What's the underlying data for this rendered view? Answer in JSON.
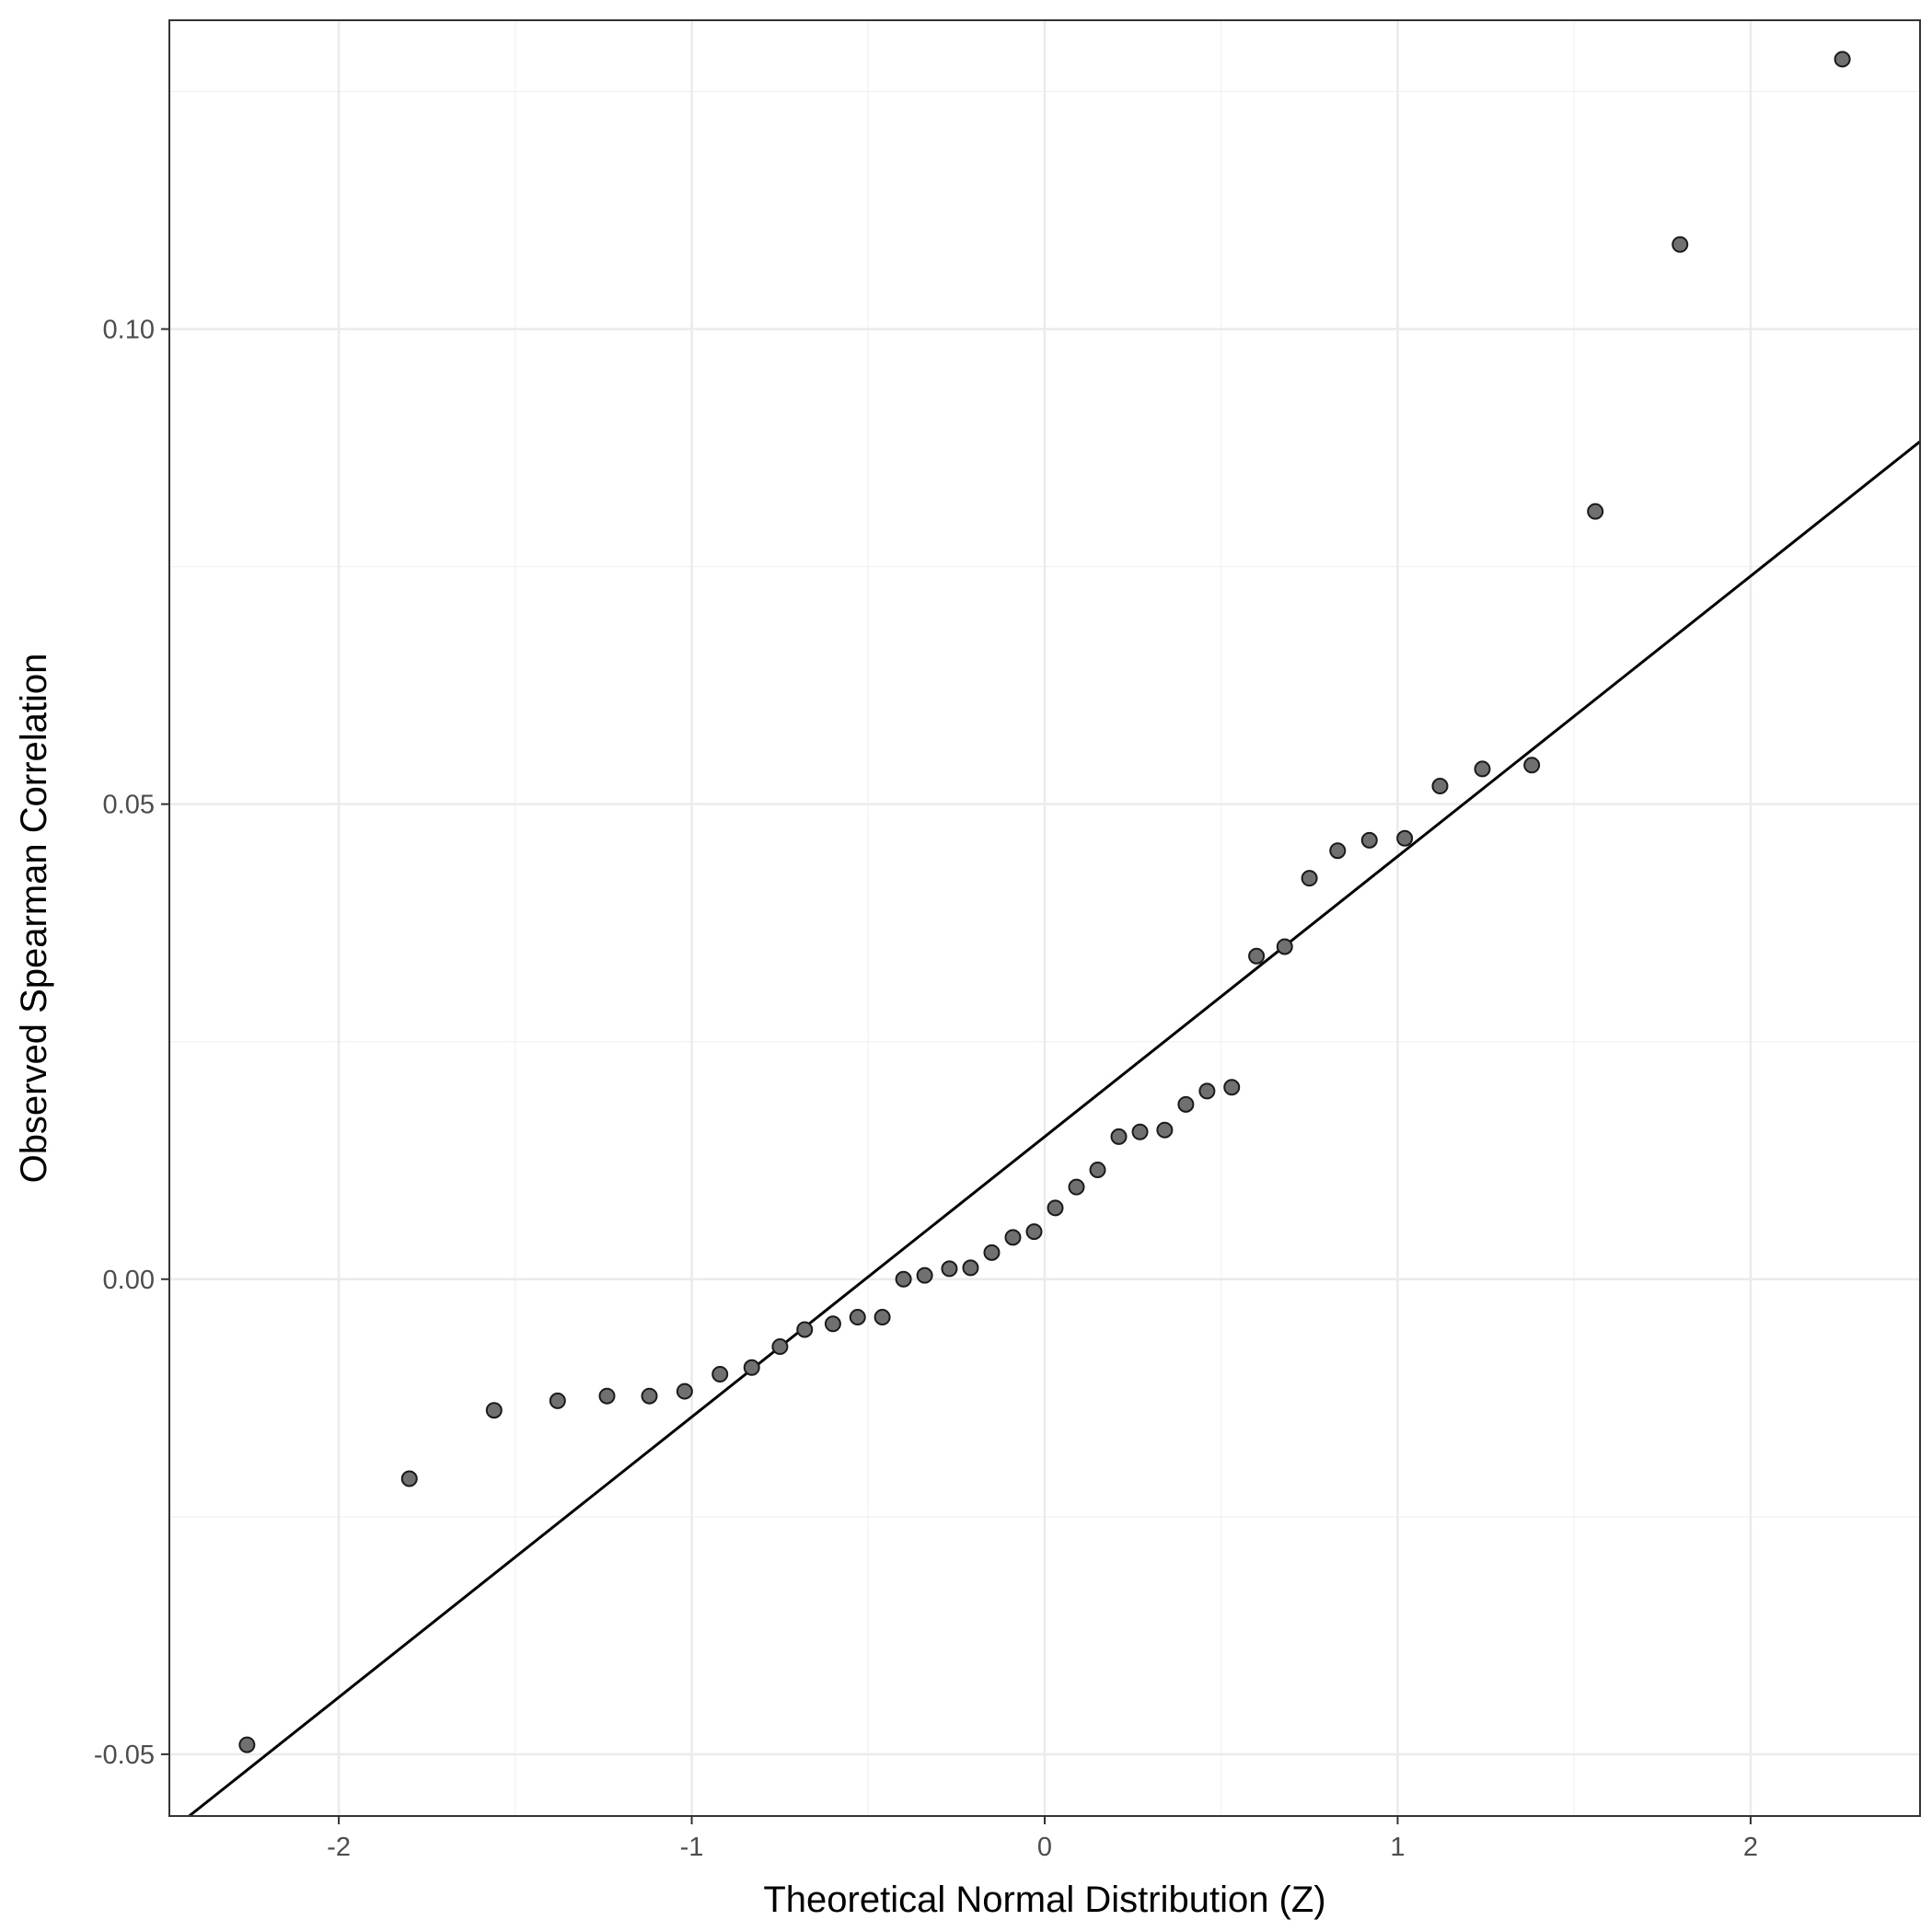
{
  "chart_data": {
    "type": "scatter",
    "title": "",
    "xlabel": "Theoretical Normal Distribution (Z)",
    "ylabel": "Observed Spearman Correlation",
    "xlim": [
      -2.48,
      2.48
    ],
    "ylim": [
      -0.0565,
      0.1325
    ],
    "x_ticks": [
      -2,
      -1,
      0,
      1,
      2
    ],
    "x_tick_labels": [
      "-2",
      "-1",
      "0",
      "1",
      "2"
    ],
    "y_ticks": [
      -0.05,
      0.0,
      0.05,
      0.1
    ],
    "y_tick_labels": [
      "-0.05",
      "0.00",
      "0.05",
      "0.10"
    ],
    "grid": true,
    "series": [
      {
        "points": [
          [
            -2.26,
            -0.049
          ],
          [
            -1.8,
            -0.021
          ],
          [
            -1.56,
            -0.0138
          ],
          [
            -1.38,
            -0.0128
          ],
          [
            -1.24,
            -0.0123
          ],
          [
            -1.12,
            -0.0123
          ],
          [
            -1.02,
            -0.0118
          ],
          [
            -0.92,
            -0.01
          ],
          [
            -0.83,
            -0.0093
          ],
          [
            -0.75,
            -0.0071
          ],
          [
            -0.68,
            -0.0053
          ],
          [
            -0.6,
            -0.0047
          ],
          [
            -0.53,
            -0.004
          ],
          [
            -0.46,
            -0.004
          ],
          [
            -0.4,
            0.0
          ],
          [
            -0.34,
            0.0004
          ],
          [
            -0.27,
            0.0011
          ],
          [
            -0.21,
            0.0012
          ],
          [
            -0.15,
            0.0028
          ],
          [
            -0.09,
            0.0044
          ],
          [
            -0.03,
            0.005
          ],
          [
            0.03,
            0.0075
          ],
          [
            0.09,
            0.0097
          ],
          [
            0.15,
            0.0115
          ],
          [
            0.21,
            0.015
          ],
          [
            0.27,
            0.0155
          ],
          [
            0.34,
            0.0157
          ],
          [
            0.4,
            0.0184
          ],
          [
            0.46,
            0.0198
          ],
          [
            0.53,
            0.0202
          ],
          [
            0.6,
            0.034
          ],
          [
            0.68,
            0.035
          ],
          [
            0.75,
            0.0422
          ],
          [
            0.83,
            0.0451
          ],
          [
            0.92,
            0.0462
          ],
          [
            1.02,
            0.0464
          ],
          [
            1.12,
            0.0519
          ],
          [
            1.24,
            0.0537
          ],
          [
            1.38,
            0.0541
          ],
          [
            1.56,
            0.0808
          ],
          [
            1.8,
            0.1089
          ],
          [
            2.26,
            0.1284
          ]
        ]
      }
    ],
    "reference_line": {
      "intercept": 0.015,
      "slope": 0.0295
    }
  }
}
